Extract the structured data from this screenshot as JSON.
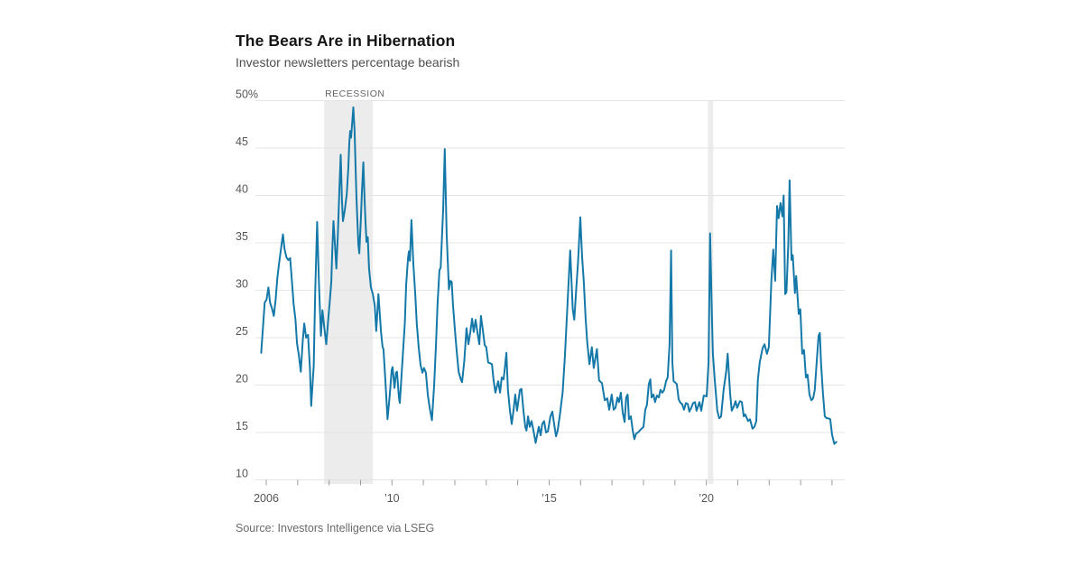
{
  "header": {
    "title": "The Bears Are in Hibernation",
    "subtitle": "Investor newsletters percentage bearish"
  },
  "source": "Source: Investors Intelligence via LSEG",
  "chart_data": {
    "type": "line",
    "title": "The Bears Are in Hibernation",
    "subtitle": "Investor newsletters percentage bearish",
    "xlabel": "",
    "ylabel": "percentage bearish",
    "grid": true,
    "legend": "none",
    "colors": {
      "line": "#1478a8",
      "band": "#ececec",
      "grid": "#e4e4e4",
      "tick": "#9a9a9a",
      "axis_text": "#555555",
      "annotation_text": "#666666"
    },
    "y_axis": {
      "min": 10,
      "max": 50,
      "tick_step": 5,
      "ticks": [
        {
          "v": 50,
          "label": "50%"
        },
        {
          "v": 45,
          "label": "45"
        },
        {
          "v": 40,
          "label": "40"
        },
        {
          "v": 35,
          "label": "35"
        },
        {
          "v": 30,
          "label": "30"
        },
        {
          "v": 25,
          "label": "25"
        },
        {
          "v": 20,
          "label": "20"
        },
        {
          "v": 15,
          "label": "15"
        },
        {
          "v": 10,
          "label": "10"
        }
      ]
    },
    "x_axis": {
      "first_tick_year": 2006,
      "last_tick_year": 2024,
      "tick_interval": 1,
      "labeled_ticks": [
        {
          "year": 2006,
          "label": "2006"
        },
        {
          "year": 2010,
          "label": "’10"
        },
        {
          "year": 2015,
          "label": "’15"
        },
        {
          "year": 2020,
          "label": "’20"
        }
      ]
    },
    "annotation": {
      "text": "RECESSION"
    },
    "recession_bands": [
      {
        "from": 2007.84,
        "to": 2009.39
      },
      {
        "from": 2020.05,
        "to": 2020.22
      }
    ],
    "series_name": "Percentage bearish",
    "points": [
      [
        2005.84,
        23.4
      ],
      [
        2005.95,
        28.7
      ],
      [
        2006.01,
        29.0
      ],
      [
        2006.07,
        30.3
      ],
      [
        2006.12,
        28.7
      ],
      [
        2006.18,
        28.1
      ],
      [
        2006.24,
        27.3
      ],
      [
        2006.3,
        29.0
      ],
      [
        2006.35,
        31.2
      ],
      [
        2006.41,
        32.9
      ],
      [
        2006.47,
        34.4
      ],
      [
        2006.53,
        35.9
      ],
      [
        2006.58,
        34.4
      ],
      [
        2006.64,
        33.5
      ],
      [
        2006.7,
        33.2
      ],
      [
        2006.76,
        33.4
      ],
      [
        2006.81,
        31.3
      ],
      [
        2006.87,
        28.6
      ],
      [
        2006.93,
        26.9
      ],
      [
        2006.98,
        24.4
      ],
      [
        2007.04,
        23.1
      ],
      [
        2007.1,
        21.4
      ],
      [
        2007.16,
        24.6
      ],
      [
        2007.21,
        26.5
      ],
      [
        2007.27,
        25.0
      ],
      [
        2007.33,
        25.3
      ],
      [
        2007.39,
        21.8
      ],
      [
        2007.43,
        17.8
      ],
      [
        2007.51,
        22.0
      ],
      [
        2007.56,
        30.0
      ],
      [
        2007.62,
        37.2
      ],
      [
        2007.68,
        30.5
      ],
      [
        2007.74,
        25.2
      ],
      [
        2007.79,
        27.9
      ],
      [
        2007.85,
        26.0
      ],
      [
        2007.91,
        24.3
      ],
      [
        2007.97,
        26.8
      ],
      [
        2008.02,
        28.8
      ],
      [
        2008.07,
        30.9
      ],
      [
        2008.1,
        34.0
      ],
      [
        2008.14,
        37.3
      ],
      [
        2008.18,
        35.2
      ],
      [
        2008.23,
        32.3
      ],
      [
        2008.28,
        36.0
      ],
      [
        2008.33,
        41.0
      ],
      [
        2008.37,
        44.3
      ],
      [
        2008.41,
        39.5
      ],
      [
        2008.44,
        37.3
      ],
      [
        2008.5,
        38.5
      ],
      [
        2008.56,
        40.1
      ],
      [
        2008.61,
        42.8
      ],
      [
        2008.64,
        45.5
      ],
      [
        2008.67,
        46.8
      ],
      [
        2008.7,
        46.1
      ],
      [
        2008.77,
        49.3
      ],
      [
        2008.81,
        46.8
      ],
      [
        2008.84,
        43.3
      ],
      [
        2008.87,
        39.7
      ],
      [
        2008.93,
        34.8
      ],
      [
        2008.96,
        33.9
      ],
      [
        2009.01,
        37.4
      ],
      [
        2009.04,
        40.1
      ],
      [
        2009.09,
        43.5
      ],
      [
        2009.13,
        39.5
      ],
      [
        2009.16,
        37.0
      ],
      [
        2009.19,
        35.1
      ],
      [
        2009.23,
        35.6
      ],
      [
        2009.27,
        32.3
      ],
      [
        2009.33,
        30.3
      ],
      [
        2009.39,
        29.6
      ],
      [
        2009.45,
        28.4
      ],
      [
        2009.5,
        25.7
      ],
      [
        2009.57,
        29.6
      ],
      [
        2009.65,
        25.7
      ],
      [
        2009.7,
        24.0
      ],
      [
        2009.73,
        23.8
      ],
      [
        2009.79,
        20.5
      ],
      [
        2009.86,
        16.4
      ],
      [
        2009.93,
        19.0
      ],
      [
        2009.99,
        21.6
      ],
      [
        2010.02,
        21.9
      ],
      [
        2010.08,
        19.7
      ],
      [
        2010.13,
        21.3
      ],
      [
        2010.16,
        21.4
      ],
      [
        2010.22,
        18.7
      ],
      [
        2010.25,
        18.1
      ],
      [
        2010.31,
        21.3
      ],
      [
        2010.36,
        24.0
      ],
      [
        2010.41,
        26.6
      ],
      [
        2010.45,
        30.5
      ],
      [
        2010.51,
        33.4
      ],
      [
        2010.54,
        34.1
      ],
      [
        2010.57,
        33.1
      ],
      [
        2010.62,
        37.4
      ],
      [
        2010.68,
        32.8
      ],
      [
        2010.74,
        29.6
      ],
      [
        2010.79,
        26.5
      ],
      [
        2010.85,
        24.0
      ],
      [
        2010.91,
        22.1
      ],
      [
        2010.97,
        21.3
      ],
      [
        2011.02,
        21.8
      ],
      [
        2011.08,
        21.3
      ],
      [
        2011.14,
        19.0
      ],
      [
        2011.2,
        17.6
      ],
      [
        2011.27,
        16.3
      ],
      [
        2011.34,
        19.9
      ],
      [
        2011.4,
        24.3
      ],
      [
        2011.45,
        28.5
      ],
      [
        2011.51,
        32.1
      ],
      [
        2011.55,
        32.4
      ],
      [
        2011.57,
        34.0
      ],
      [
        2011.63,
        38.7
      ],
      [
        2011.68,
        44.9
      ],
      [
        2011.74,
        35.9
      ],
      [
        2011.78,
        32.7
      ],
      [
        2011.81,
        30.1
      ],
      [
        2011.86,
        31.0
      ],
      [
        2011.9,
        30.9
      ],
      [
        2011.94,
        28.5
      ],
      [
        2012.0,
        25.9
      ],
      [
        2012.06,
        23.5
      ],
      [
        2012.12,
        21.4
      ],
      [
        2012.19,
        20.6
      ],
      [
        2012.23,
        20.3
      ],
      [
        2012.3,
        22.5
      ],
      [
        2012.37,
        26.0
      ],
      [
        2012.43,
        24.3
      ],
      [
        2012.49,
        25.5
      ],
      [
        2012.55,
        27.0
      ],
      [
        2012.6,
        25.6
      ],
      [
        2012.66,
        26.9
      ],
      [
        2012.72,
        25.5
      ],
      [
        2012.78,
        24.3
      ],
      [
        2012.83,
        27.3
      ],
      [
        2012.89,
        25.8
      ],
      [
        2012.95,
        24.2
      ],
      [
        2013.0,
        24.0
      ],
      [
        2013.06,
        22.4
      ],
      [
        2013.12,
        22.3
      ],
      [
        2013.18,
        22.2
      ],
      [
        2013.23,
        20.6
      ],
      [
        2013.29,
        19.2
      ],
      [
        2013.38,
        20.4
      ],
      [
        2013.44,
        19.2
      ],
      [
        2013.49,
        20.8
      ],
      [
        2013.55,
        20.6
      ],
      [
        2013.59,
        21.8
      ],
      [
        2013.64,
        23.4
      ],
      [
        2013.69,
        19.5
      ],
      [
        2013.75,
        17.4
      ],
      [
        2013.81,
        15.9
      ],
      [
        2013.87,
        17.4
      ],
      [
        2013.92,
        19.0
      ],
      [
        2013.98,
        17.3
      ],
      [
        2014.07,
        19.5
      ],
      [
        2014.12,
        19.6
      ],
      [
        2014.18,
        17.4
      ],
      [
        2014.24,
        15.6
      ],
      [
        2014.28,
        15.2
      ],
      [
        2014.33,
        16.7
      ],
      [
        2014.38,
        15.6
      ],
      [
        2014.44,
        16.2
      ],
      [
        2014.5,
        15.2
      ],
      [
        2014.57,
        13.9
      ],
      [
        2014.61,
        14.6
      ],
      [
        2014.67,
        15.6
      ],
      [
        2014.73,
        14.7
      ],
      [
        2014.78,
        15.9
      ],
      [
        2014.84,
        16.2
      ],
      [
        2014.9,
        15.0
      ],
      [
        2014.96,
        15.1
      ],
      [
        2015.04,
        16.7
      ],
      [
        2015.1,
        17.2
      ],
      [
        2015.16,
        15.9
      ],
      [
        2015.22,
        14.6
      ],
      [
        2015.27,
        15.2
      ],
      [
        2015.34,
        16.8
      ],
      [
        2015.43,
        19.2
      ],
      [
        2015.5,
        23.0
      ],
      [
        2015.56,
        27.0
      ],
      [
        2015.62,
        31.0
      ],
      [
        2015.67,
        34.2
      ],
      [
        2015.75,
        28.0
      ],
      [
        2015.8,
        26.9
      ],
      [
        2015.86,
        30.0
      ],
      [
        2015.92,
        33.0
      ],
      [
        2015.99,
        37.7
      ],
      [
        2016.05,
        33.5
      ],
      [
        2016.1,
        31.0
      ],
      [
        2016.16,
        27.0
      ],
      [
        2016.21,
        24.6
      ],
      [
        2016.28,
        22.2
      ],
      [
        2016.36,
        24.0
      ],
      [
        2016.42,
        21.8
      ],
      [
        2016.52,
        23.8
      ],
      [
        2016.59,
        20.5
      ],
      [
        2016.68,
        20.2
      ],
      [
        2016.77,
        18.4
      ],
      [
        2016.85,
        18.6
      ],
      [
        2016.91,
        17.4
      ],
      [
        2016.99,
        19.0
      ],
      [
        2017.05,
        17.4
      ],
      [
        2017.11,
        17.6
      ],
      [
        2017.17,
        18.7
      ],
      [
        2017.22,
        18.2
      ],
      [
        2017.28,
        19.2
      ],
      [
        2017.34,
        17.1
      ],
      [
        2017.4,
        16.1
      ],
      [
        2017.45,
        18.7
      ],
      [
        2017.5,
        19.0
      ],
      [
        2017.54,
        16.4
      ],
      [
        2017.6,
        16.7
      ],
      [
        2017.66,
        15.2
      ],
      [
        2017.71,
        14.3
      ],
      [
        2017.77,
        14.9
      ],
      [
        2017.83,
        15.0
      ],
      [
        2017.88,
        15.2
      ],
      [
        2017.94,
        15.4
      ],
      [
        2018.0,
        15.6
      ],
      [
        2018.06,
        17.4
      ],
      [
        2018.11,
        17.9
      ],
      [
        2018.17,
        20.1
      ],
      [
        2018.22,
        20.6
      ],
      [
        2018.26,
        18.7
      ],
      [
        2018.32,
        19.0
      ],
      [
        2018.37,
        18.2
      ],
      [
        2018.43,
        18.9
      ],
      [
        2018.49,
        18.7
      ],
      [
        2018.54,
        19.5
      ],
      [
        2018.6,
        19.2
      ],
      [
        2018.66,
        19.5
      ],
      [
        2018.72,
        20.4
      ],
      [
        2018.77,
        20.8
      ],
      [
        2018.83,
        24.3
      ],
      [
        2018.88,
        34.2
      ],
      [
        2018.92,
        22.4
      ],
      [
        2018.96,
        20.4
      ],
      [
        2019.0,
        20.3
      ],
      [
        2019.06,
        20.1
      ],
      [
        2019.12,
        18.5
      ],
      [
        2019.18,
        18.1
      ],
      [
        2019.23,
        18.0
      ],
      [
        2019.29,
        17.4
      ],
      [
        2019.35,
        18.1
      ],
      [
        2019.41,
        18.0
      ],
      [
        2019.46,
        17.2
      ],
      [
        2019.52,
        17.6
      ],
      [
        2019.58,
        18.1
      ],
      [
        2019.64,
        18.2
      ],
      [
        2019.69,
        17.3
      ],
      [
        2019.78,
        18.2
      ],
      [
        2019.84,
        17.3
      ],
      [
        2019.92,
        18.9
      ],
      [
        2020.01,
        18.8
      ],
      [
        2020.07,
        22.4
      ],
      [
        2020.12,
        36.0
      ],
      [
        2020.18,
        27.0
      ],
      [
        2020.21,
        23.3
      ],
      [
        2020.27,
        20.5
      ],
      [
        2020.35,
        17.3
      ],
      [
        2020.41,
        16.5
      ],
      [
        2020.47,
        16.7
      ],
      [
        2020.55,
        19.5
      ],
      [
        2020.63,
        21.4
      ],
      [
        2020.68,
        23.3
      ],
      [
        2020.76,
        19.0
      ],
      [
        2020.81,
        17.3
      ],
      [
        2020.87,
        17.7
      ],
      [
        2020.93,
        18.3
      ],
      [
        2020.98,
        17.6
      ],
      [
        2021.07,
        18.3
      ],
      [
        2021.13,
        18.2
      ],
      [
        2021.19,
        16.7
      ],
      [
        2021.24,
        16.9
      ],
      [
        2021.33,
        16.2
      ],
      [
        2021.39,
        16.4
      ],
      [
        2021.47,
        15.4
      ],
      [
        2021.53,
        15.6
      ],
      [
        2021.59,
        16.2
      ],
      [
        2021.64,
        20.5
      ],
      [
        2021.7,
        22.4
      ],
      [
        2021.79,
        23.9
      ],
      [
        2021.85,
        24.3
      ],
      [
        2021.93,
        23.3
      ],
      [
        2021.99,
        24.0
      ],
      [
        2022.07,
        31.0
      ],
      [
        2022.13,
        34.3
      ],
      [
        2022.19,
        31.0
      ],
      [
        2022.25,
        38.9
      ],
      [
        2022.3,
        37.6
      ],
      [
        2022.36,
        39.2
      ],
      [
        2022.42,
        37.8
      ],
      [
        2022.46,
        40.0
      ],
      [
        2022.51,
        29.6
      ],
      [
        2022.55,
        29.8
      ],
      [
        2022.61,
        35.0
      ],
      [
        2022.65,
        41.6
      ],
      [
        2022.71,
        33.2
      ],
      [
        2022.75,
        33.7
      ],
      [
        2022.82,
        29.7
      ],
      [
        2022.86,
        31.5
      ],
      [
        2022.94,
        27.5
      ],
      [
        2022.99,
        28.0
      ],
      [
        2023.05,
        23.3
      ],
      [
        2023.11,
        23.7
      ],
      [
        2023.17,
        20.8
      ],
      [
        2023.22,
        21.1
      ],
      [
        2023.28,
        19.0
      ],
      [
        2023.34,
        18.4
      ],
      [
        2023.4,
        18.6
      ],
      [
        2023.45,
        19.5
      ],
      [
        2023.51,
        22.4
      ],
      [
        2023.57,
        25.2
      ],
      [
        2023.61,
        25.5
      ],
      [
        2023.65,
        22.4
      ],
      [
        2023.71,
        19.2
      ],
      [
        2023.77,
        16.7
      ],
      [
        2023.83,
        16.5
      ],
      [
        2023.88,
        16.5
      ],
      [
        2023.94,
        16.4
      ],
      [
        2024.0,
        14.8
      ],
      [
        2024.07,
        13.8
      ],
      [
        2024.14,
        14.0
      ]
    ]
  }
}
